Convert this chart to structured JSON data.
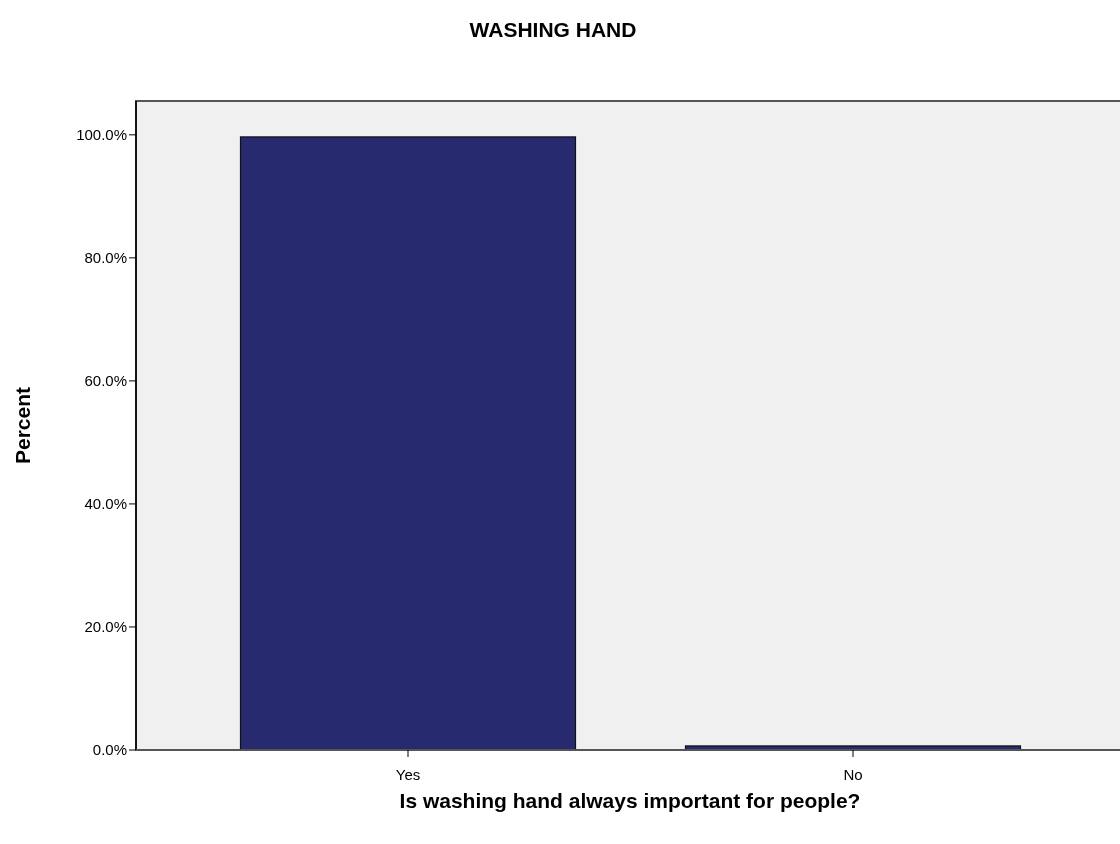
{
  "chart_data": {
    "type": "bar",
    "title": "WASHING HAND",
    "xlabel": "Is washing hand always important for people?",
    "ylabel": "Percent",
    "categories": [
      "Yes",
      "No"
    ],
    "values": [
      99.5,
      0.5
    ],
    "color": "#282a70",
    "ylim": [
      0,
      105.5
    ],
    "yticks": [
      {
        "value": 0,
        "label": "0.0%"
      },
      {
        "value": 20,
        "label": "20.0%"
      },
      {
        "value": 40,
        "label": "40.0%"
      },
      {
        "value": 60,
        "label": "60.0%"
      },
      {
        "value": 80,
        "label": "80.0%"
      },
      {
        "value": 100,
        "label": "100.0%"
      }
    ],
    "grid": false
  }
}
